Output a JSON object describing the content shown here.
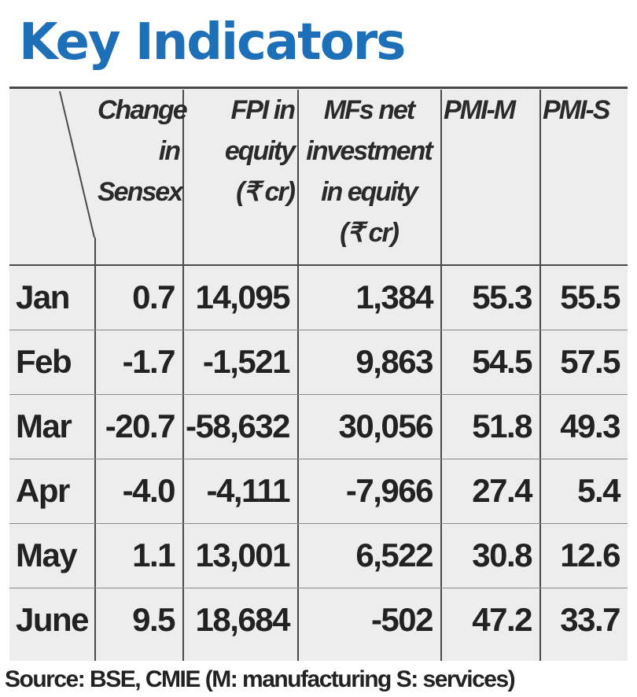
{
  "title": "Key Indicators",
  "source": "Source: BSE, CMIE  (M: manufacturing S: services)",
  "colors": {
    "title": "#1d6fb8",
    "table_background": "#ededed",
    "rule": "#4a4a4a",
    "text": "#222222"
  },
  "chart_data": {
    "type": "table",
    "title": "Key Indicators",
    "columns": [
      "Change\nin\nSensex",
      "FPI in\nequity\n(₹ cr)",
      "MFs net\ninvestment\nin equity\n(₹ cr)",
      "PMI-M",
      "PMI-S"
    ],
    "rows": [
      {
        "label": "Jan",
        "values": [
          "0.7",
          "14,095",
          "1,384",
          "55.3",
          "55.5"
        ]
      },
      {
        "label": "Feb",
        "values": [
          "-1.7",
          "-1,521",
          "9,863",
          "54.5",
          "57.5"
        ]
      },
      {
        "label": "Mar",
        "values": [
          "-20.7",
          "-58,632",
          "30,056",
          "51.8",
          "49.3"
        ]
      },
      {
        "label": "Apr",
        "values": [
          "-4.0",
          "-4,111",
          "-7,966",
          "27.4",
          "5.4"
        ]
      },
      {
        "label": "May",
        "values": [
          "1.1",
          "13,001",
          "6,522",
          "30.8",
          "12.6"
        ]
      },
      {
        "label": "June",
        "values": [
          "9.5",
          "18,684",
          "-502",
          "47.2",
          "33.7"
        ]
      }
    ],
    "source": "Source: BSE, CMIE  (M: manufacturing S: services)"
  }
}
